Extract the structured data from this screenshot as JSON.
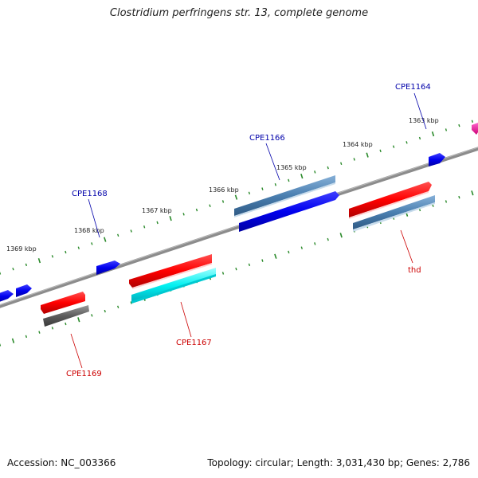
{
  "title": "Clostridium perfringens str. 13, complete genome",
  "accession": "Accession: NC_003366",
  "summary": "Topology: circular; Length: 3,031,430 bp; Genes: 2,786",
  "ticks": [
    "1363 kbp",
    "1364 kbp",
    "1365 kbp",
    "1366 kbp",
    "1367 kbp",
    "1368 kbp",
    "1369 kbp"
  ],
  "genes_forward": [
    "CPE1164",
    "CPE1166",
    "CPE1168"
  ],
  "genes_reverse": [
    "thd",
    "CPE1167",
    "CPE1169"
  ],
  "colors": {
    "forward_label": "#0000aa",
    "reverse_label": "#cc0000",
    "tick_mark": "#2a8a2a",
    "backbone": "#808080"
  }
}
